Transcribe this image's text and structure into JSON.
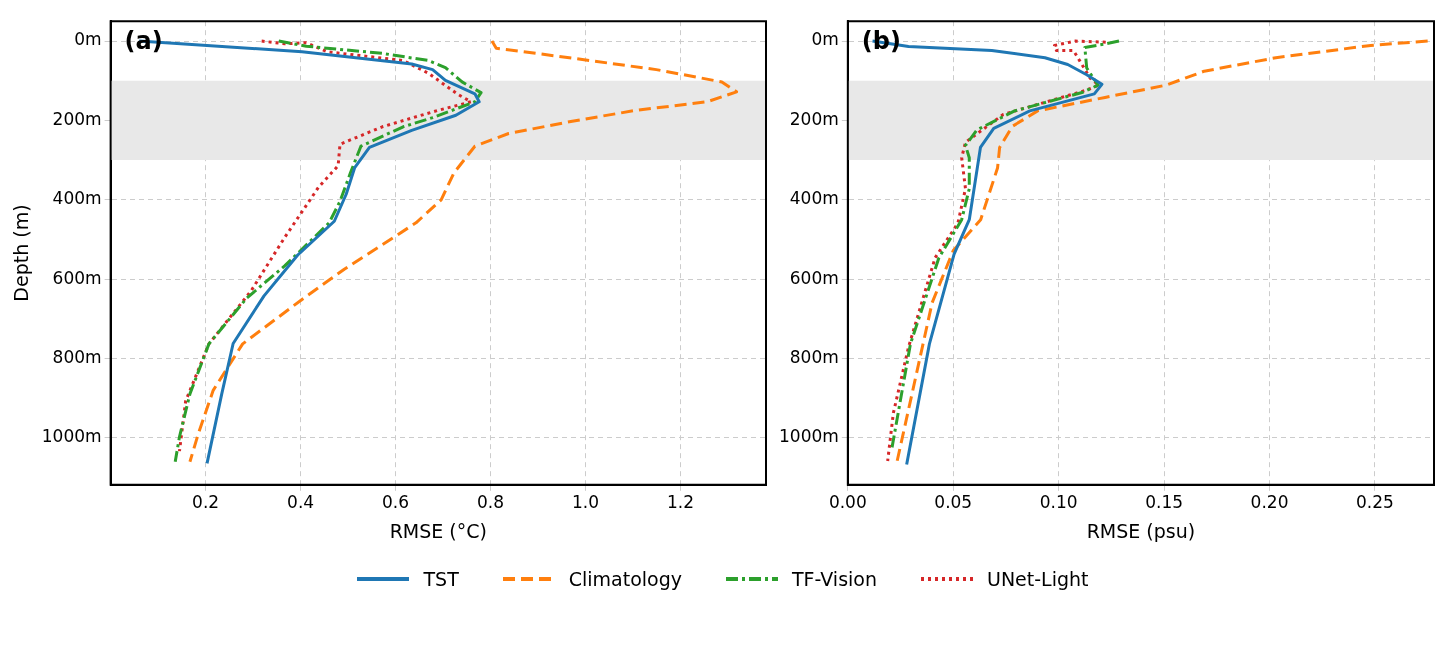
{
  "chart_data": [
    {
      "type": "line",
      "xlabel": "RMSE (°C)",
      "ylabel": "Depth (m)",
      "annotations": [
        "(a)"
      ],
      "xlim": [
        0.0,
        1.38
      ],
      "ylim": [
        1118,
        -50
      ],
      "xticks": [
        {
          "value": 0.2,
          "label": "0.2"
        },
        {
          "value": 0.4,
          "label": "0.4"
        },
        {
          "value": 0.6,
          "label": "0.6"
        },
        {
          "value": 0.8,
          "label": "0.8"
        },
        {
          "value": 1.0,
          "label": "1.0"
        },
        {
          "value": 1.2,
          "label": "1.2"
        }
      ],
      "yticks": [
        {
          "value": 0,
          "label": "0m"
        },
        {
          "value": 200,
          "label": "200m"
        },
        {
          "value": 400,
          "label": "400m"
        },
        {
          "value": 600,
          "label": "600m"
        },
        {
          "value": 800,
          "label": "800m"
        },
        {
          "value": 1000,
          "label": "1000m"
        }
      ],
      "grid": true,
      "legend": "bottom",
      "marker": "none",
      "bands": [
        {
          "axis": "y",
          "from": 100,
          "to": 300,
          "color": "#e8e8e8"
        }
      ],
      "series": [
        {
          "name": "TST",
          "color": "#1f77b4",
          "line_style": "solid",
          "x": [
            0.06,
            0.403,
            0.634,
            0.678,
            0.705,
            0.767,
            0.776,
            0.727,
            0.634,
            0.545,
            0.514,
            0.496,
            0.471,
            0.394,
            0.323,
            0.258,
            0.234,
            0.203
          ],
          "values": [
            0,
            27,
            58,
            72,
            99,
            133,
            153,
            187,
            225,
            268,
            319,
            386,
            454,
            539,
            642,
            762,
            889,
            1064
          ]
        },
        {
          "name": "Climatology",
          "color": "#ff7f0e",
          "line_style": "dashed",
          "x": [
            0.803,
            0.812,
            0.972,
            1.149,
            1.287,
            1.318,
            1.256,
            1.104,
            0.972,
            0.838,
            0.767,
            0.723,
            0.696,
            0.643,
            0.492,
            0.403,
            0.278,
            0.216,
            0.185,
            0.167
          ],
          "values": [
            0,
            18,
            43,
            72,
            103,
            128,
            153,
            175,
            202,
            233,
            265,
            332,
            400,
            458,
            575,
            651,
            763,
            880,
            988,
            1060
          ]
        },
        {
          "name": "TF-Vision",
          "color": "#2ca02c",
          "line_style": "dashdot",
          "x": [
            0.354,
            0.412,
            0.572,
            0.669,
            0.705,
            0.74,
            0.78,
            0.767,
            0.678,
            0.616,
            0.527,
            0.505,
            0.483,
            0.46,
            0.367,
            0.287,
            0.207,
            0.167,
            0.145,
            0.136
          ],
          "values": [
            0,
            13,
            31,
            49,
            67,
            103,
            130,
            153,
            193,
            216,
            265,
            332,
            404,
            458,
            566,
            647,
            763,
            889,
            997,
            1060
          ]
        },
        {
          "name": "UNet-Light",
          "color": "#d62728",
          "line_style": "dotted",
          "x": [
            0.318,
            0.367,
            0.412,
            0.456,
            0.616,
            0.669,
            0.732,
            0.759,
            0.688,
            0.572,
            0.483,
            0.479,
            0.438,
            0.367,
            0.296,
            0.207,
            0.158,
            0.145
          ],
          "values": [
            0,
            7,
            4,
            27,
            49,
            81,
            135,
            153,
            175,
            216,
            260,
            314,
            368,
            494,
            629,
            763,
            907,
            1033
          ]
        }
      ]
    },
    {
      "type": "line",
      "xlabel": "RMSE (psu)",
      "annotations": [
        "(b)"
      ],
      "xlim": [
        0.0,
        0.278
      ],
      "ylim": [
        1118,
        -50
      ],
      "xticks": [
        {
          "value": 0,
          "label": "0.00"
        },
        {
          "value": 0.05,
          "label": "0.05"
        },
        {
          "value": 0.1,
          "label": "0.10"
        },
        {
          "value": 0.15,
          "label": "0.15"
        },
        {
          "value": 0.2,
          "label": "0.20"
        },
        {
          "value": 0.25,
          "label": "0.25"
        }
      ],
      "yticks": [
        {
          "value": 0,
          "label": "0m"
        },
        {
          "value": 200,
          "label": "200m"
        },
        {
          "value": 400,
          "label": "400m"
        },
        {
          "value": 600,
          "label": "600m"
        },
        {
          "value": 800,
          "label": "800m"
        },
        {
          "value": 1000,
          "label": "1000m"
        }
      ],
      "grid": true,
      "marker": "none",
      "bands": [
        {
          "axis": "y",
          "from": 100,
          "to": 300,
          "color": "#e8e8e8"
        }
      ],
      "series": [
        {
          "color": "#1f77b4",
          "line_style": "solid",
          "x": [
            0.0117,
            0.0288,
            0.0683,
            0.0935,
            0.1043,
            0.1133,
            0.1205,
            0.1169,
            0.0863,
            0.0692,
            0.0629,
            0.0576,
            0.0504,
            0.0387,
            0.0279
          ],
          "values": [
            0,
            14,
            24,
            42,
            59,
            85,
            109,
            133,
            176,
            220,
            268,
            450,
            537,
            763,
            1067
          ]
        },
        {
          "color": "#ff7f0e",
          "line_style": "dashed",
          "x": [
            0.275,
            0.248,
            0.203,
            0.169,
            0.151,
            0.122,
            0.09,
            0.078,
            0.072,
            0.071,
            0.063,
            0.05,
            0.04,
            0.0234
          ],
          "values": [
            0,
            11,
            42,
            76,
            111,
            142,
            176,
            215,
            268,
            320,
            450,
            528,
            659,
            1058
          ]
        },
        {
          "color": "#2ca02c",
          "line_style": "dashdot",
          "x": [
            0.1286,
            0.1223,
            0.1124,
            0.1133,
            0.1187,
            0.1115,
            0.0791,
            0.0612,
            0.0558,
            0.0576,
            0.0576,
            0.054,
            0.0432,
            0.0297,
            0.0207
          ],
          "values": [
            0,
            7,
            16,
            68,
            111,
            129,
            176,
            224,
            263,
            294,
            372,
            450,
            546,
            763,
            1032
          ]
        },
        {
          "color": "#d62728",
          "line_style": "dotted",
          "x": [
            0.1223,
            0.1079,
            0.098,
            0.099,
            0.107,
            0.11,
            0.115,
            0.119,
            0.113,
            0.0737,
            0.0558,
            0.054,
            0.0558,
            0.0522,
            0.0414,
            0.0288,
            0.0216,
            0.0189
          ],
          "values": [
            3,
            0,
            11,
            24,
            24,
            50,
            94,
            111,
            124,
            185,
            255,
            294,
            372,
            459,
            546,
            771,
            937,
            1058
          ]
        }
      ]
    }
  ]
}
